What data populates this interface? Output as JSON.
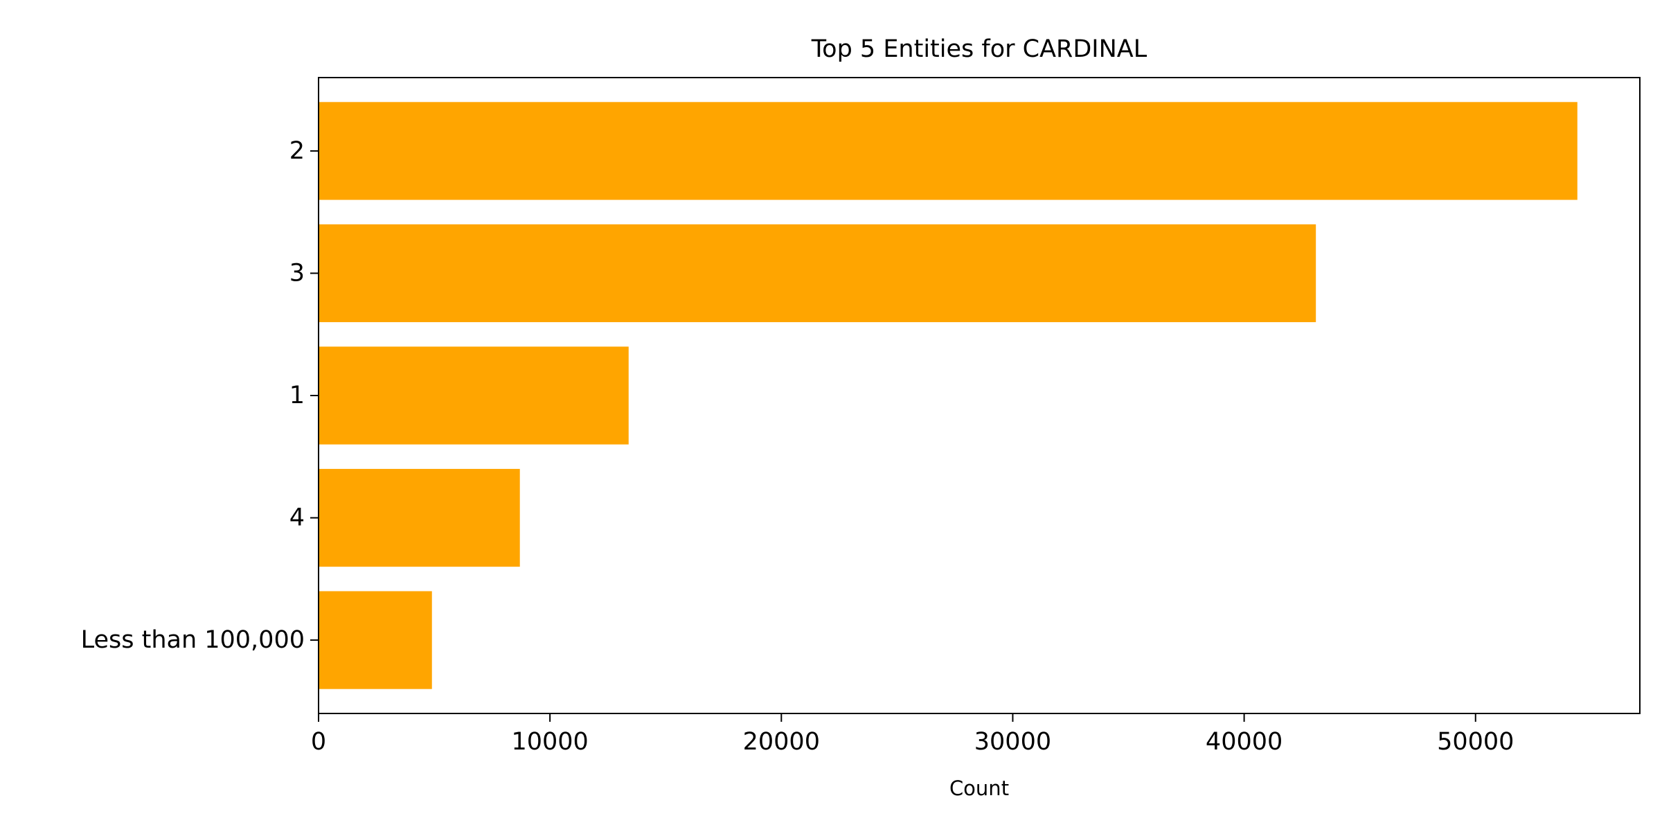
{
  "chart_data": {
    "type": "bar",
    "orientation": "horizontal",
    "title": "Top 5 Entities for CARDINAL",
    "xlabel": "Count",
    "ylabel": "",
    "categories": [
      "2",
      "3",
      "1",
      "4",
      "Less than 100,000"
    ],
    "values": [
      54400,
      43100,
      13400,
      8700,
      4900
    ],
    "xlim": [
      0,
      57100
    ],
    "xticks": [
      0,
      10000,
      20000,
      30000,
      40000,
      50000
    ],
    "xtick_labels": [
      "0",
      "10000",
      "20000",
      "30000",
      "40000",
      "50000"
    ],
    "grid": false,
    "legend": "none",
    "bar_color": "#FFA500"
  }
}
